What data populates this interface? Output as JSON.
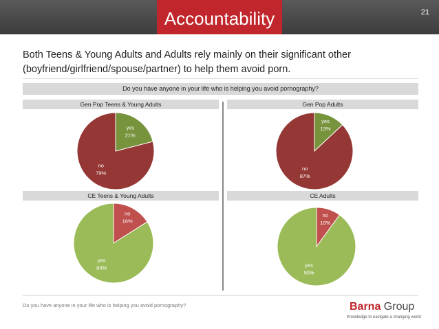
{
  "header": {
    "title": "Accountability",
    "page_number": "21"
  },
  "subtitle": "Both Teens & Young Adults and Adults rely mainly on their significant other (boyfriend/girlfriend/spouse/partner) to help them avoid porn.",
  "question": "Do you have anyone in your life who is helping you avoid pornography?",
  "footer": {
    "question": "Do you have anyone in your life who is helping you avoid pornography?",
    "brand_prefix": "Barna",
    "brand_suffix": " Group",
    "tagline": "Knowledge to navigate a changing world"
  },
  "colors": {
    "title_bar": "#4a4a4a",
    "title_accent": "#c0262b",
    "yes_top": "#77933c",
    "no_top": "#953735",
    "yes_bottom": "#9bbb59",
    "no_bottom": "#c0504d"
  },
  "chart_data": [
    {
      "type": "pie",
      "title": "Gen Pop Teens & Young Adults",
      "slices": [
        {
          "label": "yes",
          "value": 21,
          "display": "21%"
        },
        {
          "label": "no",
          "value": 79,
          "display": "79%"
        }
      ]
    },
    {
      "type": "pie",
      "title": "Gen Pop Adults",
      "slices": [
        {
          "label": "yes",
          "value": 13,
          "display": "13%"
        },
        {
          "label": "no",
          "value": 87,
          "display": "87%"
        }
      ]
    },
    {
      "type": "pie",
      "title": "CE Teens & Young Adults",
      "slices": [
        {
          "label": "no",
          "value": 16,
          "display": "16%"
        },
        {
          "label": "yes",
          "value": 84,
          "display": "84%"
        }
      ]
    },
    {
      "type": "pie",
      "title": "CE Adults",
      "slices": [
        {
          "label": "no",
          "value": 10,
          "display": "10%"
        },
        {
          "label": "yes",
          "value": 90,
          "display": "90%"
        }
      ]
    }
  ]
}
